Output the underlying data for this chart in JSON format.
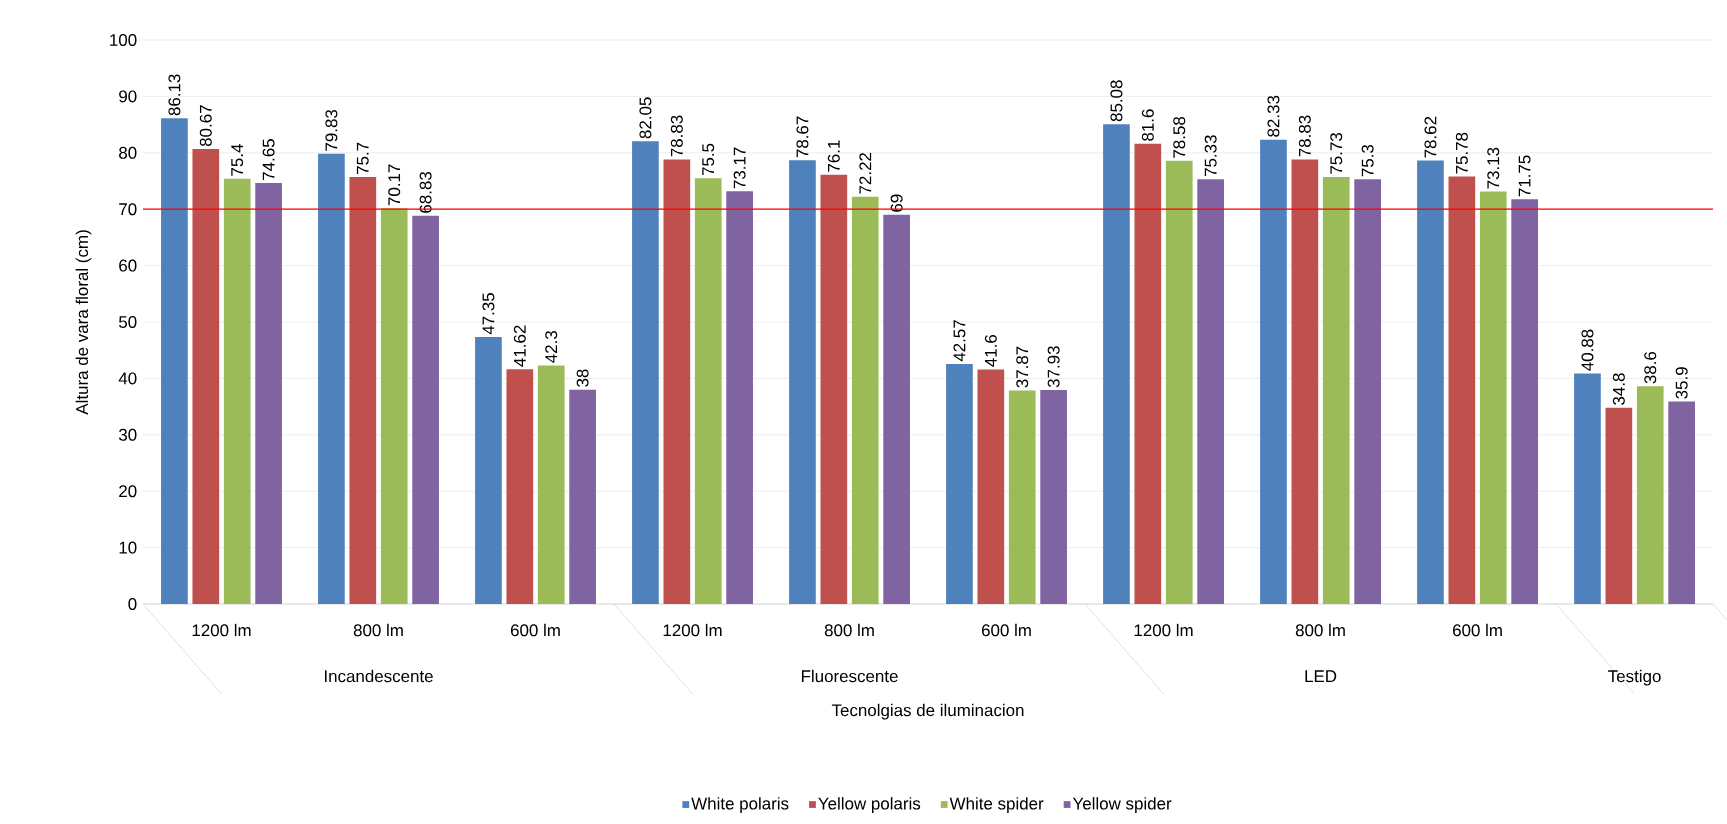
{
  "chart_data": {
    "type": "bar",
    "xlabel": "Tecnolgias de iluminacion",
    "ylabel": "Altura de vara floral (cm)",
    "categories": [
      "1200 lm",
      "800 lm",
      "600 lm",
      "1200 lm",
      "800 lm",
      "600 lm",
      "1200 lm",
      "800 lm",
      "600 lm",
      null
    ],
    "annotations": [
      "Incandescente",
      "Fluorescente",
      "LED",
      "Testigo"
    ],
    "series": [
      {
        "name": "White polaris",
        "color": "#4f81bd",
        "values": [
          86.13,
          79.83,
          47.35,
          82.05,
          78.67,
          42.57,
          85.08,
          82.33,
          78.62,
          40.88
        ]
      },
      {
        "name": "Yellow polaris",
        "color": "#c0504d",
        "values": [
          80.67,
          75.7,
          41.62,
          78.83,
          76.1,
          41.6,
          81.6,
          78.83,
          75.78,
          34.8
        ]
      },
      {
        "name": "White spider",
        "color": "#9bbb59",
        "values": [
          75.4,
          70.17,
          42.3,
          75.5,
          72.22,
          37.87,
          78.58,
          75.73,
          73.13,
          38.6
        ]
      },
      {
        "name": "Yellow spider",
        "color": "#8064a2",
        "values": [
          74.65,
          68.83,
          38,
          73.17,
          69,
          37.93,
          75.33,
          75.3,
          71.75,
          35.9
        ]
      }
    ],
    "ylim": [
      0,
      100
    ],
    "yticks": [
      0,
      10,
      20,
      30,
      40,
      50,
      60,
      70,
      80,
      90,
      100
    ],
    "grid": "y",
    "legend": "bottom",
    "data_labels": true,
    "ref_lines": [
      {
        "axis": "y",
        "value": 70,
        "color": "#ff0000"
      }
    ]
  }
}
